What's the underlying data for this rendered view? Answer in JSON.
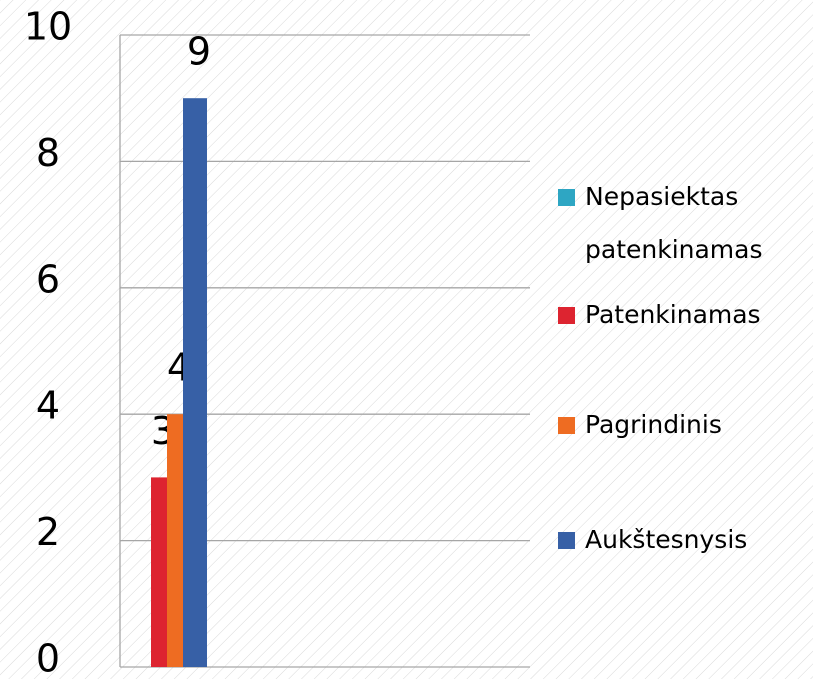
{
  "chart_data": {
    "type": "bar",
    "categories": [
      null
    ],
    "series": [
      {
        "name": "Nepasiektas patenkinamas",
        "color": "#2ea6c3",
        "values": [
          0
        ]
      },
      {
        "name": "Patenkinamas",
        "color": "#dd2430",
        "values": [
          3
        ]
      },
      {
        "name": "Pagrindinis",
        "color": "#ee6c22",
        "values": [
          4
        ]
      },
      {
        "name": "Aukštesnysis",
        "color": "#3760a6",
        "values": [
          9
        ]
      }
    ],
    "ylim": [
      0,
      10
    ],
    "yticks": [
      0,
      2,
      4,
      6,
      8,
      10
    ],
    "grid": true,
    "legend": "right"
  }
}
